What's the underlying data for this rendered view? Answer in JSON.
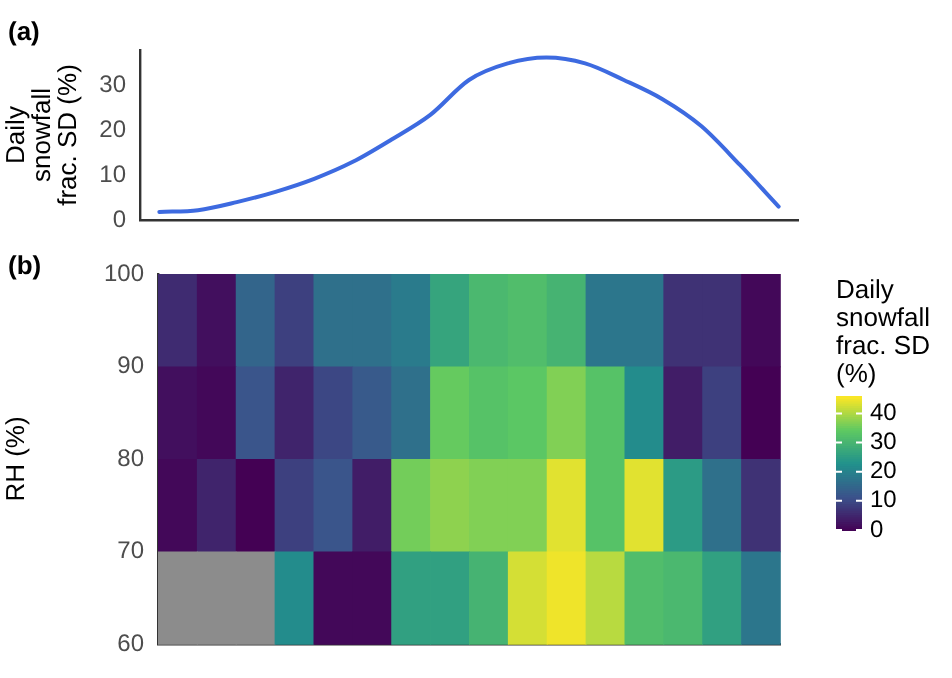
{
  "chart_data": [
    {
      "type": "line",
      "annotations": [
        "(a)"
      ],
      "ylabel": "Daily\nsnowfall\nfrac. SD (%)",
      "categories": [
        null,
        null,
        null,
        null,
        null,
        null,
        null,
        null,
        null,
        null,
        null,
        null,
        null,
        null,
        null,
        null,
        null
      ],
      "series": [
        {
          "color": "#3d6ae0",
          "values": [
            1.8,
            2.2,
            4.0,
            6.3,
            9.2,
            13.0,
            18.0,
            23.5,
            31.3,
            35.0,
            36.3,
            35.0,
            31.3,
            27.0,
            21.0,
            12.3,
            3.0
          ]
        }
      ],
      "ylim": [
        0,
        38
      ],
      "yticks": [
        0,
        10,
        20,
        30
      ],
      "grid": false,
      "legend": false,
      "marker": "none"
    },
    {
      "type": "heatmap",
      "annotations": [
        "(b)"
      ],
      "ylabel": "RH (%)",
      "clabel": "Daily snowfall frac. SD (%)",
      "categories": [
        null,
        null,
        null,
        null,
        null,
        null,
        null,
        null,
        null,
        null,
        null,
        null,
        null,
        null,
        null,
        null
      ],
      "cells": [
        [
          6,
          2,
          15,
          9,
          17,
          17,
          19,
          27,
          31,
          32,
          30,
          18,
          18,
          7,
          7,
          1
        ],
        [
          2,
          1,
          12,
          5,
          10,
          13,
          17,
          35,
          33,
          34,
          37,
          33,
          22,
          4,
          9,
          0
        ],
        [
          1,
          5,
          0,
          9,
          12,
          4,
          36,
          38,
          37,
          37,
          44,
          33,
          44,
          25,
          17,
          7
        ],
        [
          null,
          null,
          null,
          22,
          1,
          1,
          26,
          26,
          30,
          43,
          45,
          41,
          32,
          31,
          26,
          18
        ]
      ],
      "ylim": [
        60,
        100
      ],
      "yticks": [
        60,
        70,
        80,
        90,
        100
      ],
      "clim": [
        0,
        46
      ],
      "cticks": [
        0,
        10,
        20,
        30,
        40
      ]
    }
  ]
}
